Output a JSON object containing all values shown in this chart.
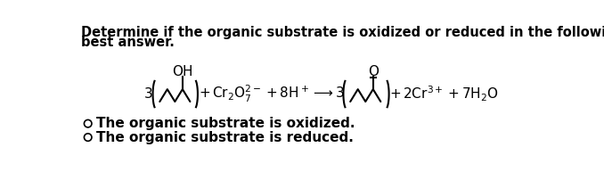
{
  "title_line1": "Determine if the organic substrate is oxidized or reduced in the following reaction. Select the single",
  "title_line2": "best answer.",
  "option1": "The organic substrate is oxidized.",
  "option2": "The organic substrate is reduced.",
  "bg_color": "#ffffff",
  "text_color": "#000000",
  "font_size_title": 10.5,
  "font_size_reaction": 11,
  "font_size_options": 11
}
